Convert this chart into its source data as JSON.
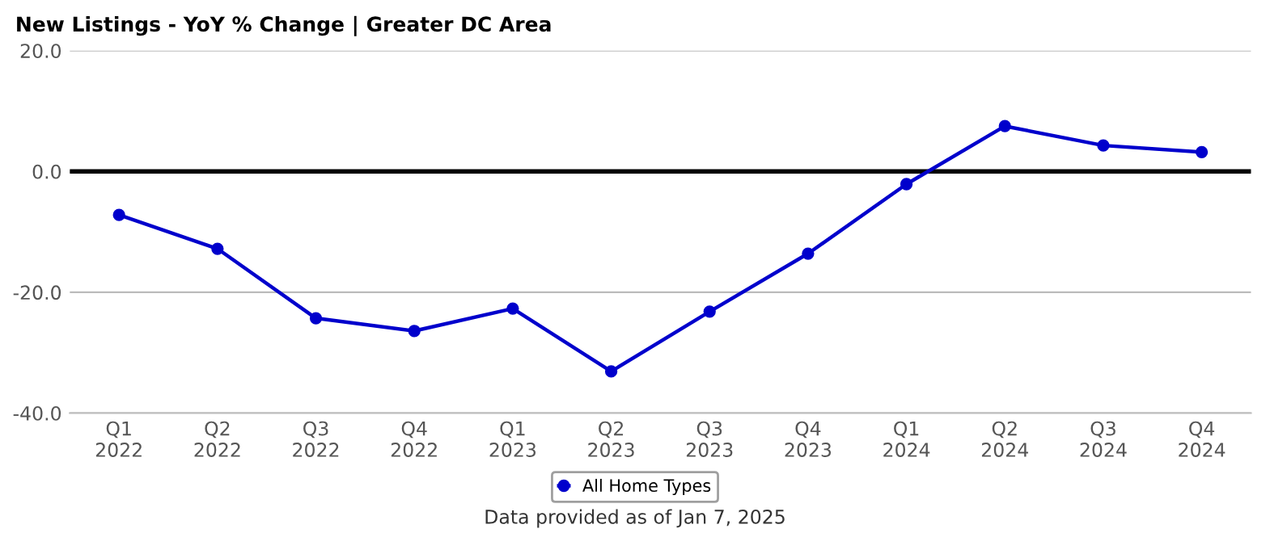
{
  "chart_data": {
    "type": "line",
    "title": "New Listings - YoY % Change | Greater DC Area",
    "categories": [
      "Q1\n2022",
      "Q2\n2022",
      "Q3\n2022",
      "Q4\n2022",
      "Q1\n2023",
      "Q2\n2023",
      "Q3\n2023",
      "Q4\n2023",
      "Q1\n2024",
      "Q2\n2024",
      "Q3\n2024",
      "Q4\n2024"
    ],
    "series": [
      {
        "name": "All Home Types",
        "color": "#0000cc",
        "values": [
          -7.2,
          -12.8,
          -24.3,
          -26.4,
          -22.7,
          -33.1,
          -23.2,
          -13.6,
          -2.1,
          7.5,
          4.3,
          3.2
        ]
      }
    ],
    "ylim": [
      -40,
      20
    ],
    "yticks": [
      {
        "value": -40,
        "label": "-40.0"
      },
      {
        "value": -20,
        "label": "-20.0"
      },
      {
        "value": 0,
        "label": "0.0"
      },
      {
        "value": 20,
        "label": "20.0"
      }
    ],
    "ref_lines": [
      {
        "axis": "y",
        "value": 0,
        "color": "#000000"
      }
    ],
    "grid": "y",
    "legend": "bottom",
    "marker": "circle",
    "line_style": "solid",
    "annotations": [
      "Data provided as of Jan 7, 2025"
    ]
  }
}
